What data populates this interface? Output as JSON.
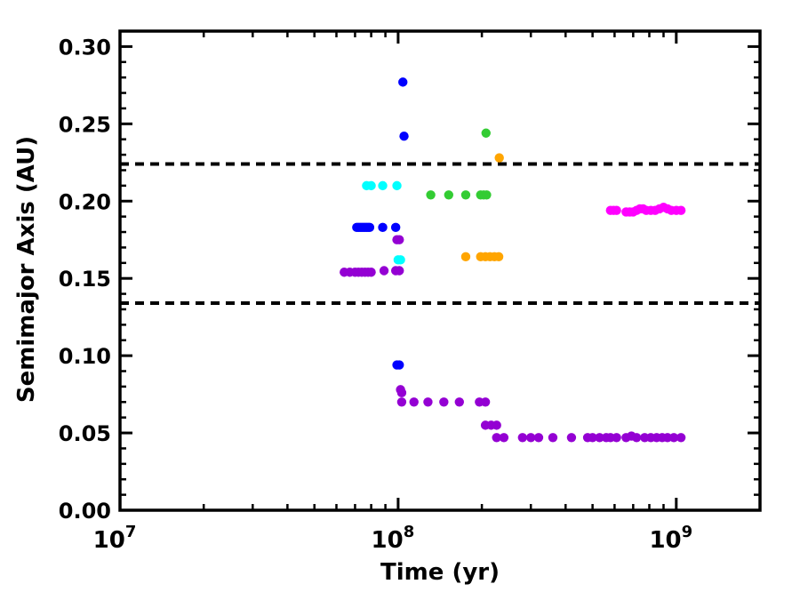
{
  "chart_data": {
    "type": "scatter",
    "title": "",
    "xlabel": "Time (yr)",
    "ylabel": "Semimajor Axis (AU)",
    "xscale": "log",
    "xlim": [
      10000000,
      2000000000
    ],
    "ylim": [
      0.0,
      0.31
    ],
    "grid": false,
    "legend": "none",
    "x_major_ticks": [
      {
        "value": 10000000,
        "base": "10",
        "exp": "7"
      },
      {
        "value": 100000000,
        "base": "10",
        "exp": "8"
      },
      {
        "value": 1000000000,
        "base": "10",
        "exp": "9"
      }
    ],
    "y_ticks": [
      0.0,
      0.05,
      0.1,
      0.15,
      0.2,
      0.25,
      0.3
    ],
    "y_tick_labels": [
      "0.00",
      "0.05",
      "0.10",
      "0.15",
      "0.20",
      "0.25",
      "0.30"
    ],
    "reference_lines": [
      {
        "y": 0.224,
        "style": "dashed",
        "color": "#000000"
      },
      {
        "y": 0.134,
        "style": "dashed",
        "color": "#000000"
      }
    ],
    "series": [
      {
        "color": "#0000ff",
        "points": [
          [
            71000000,
            0.183
          ],
          [
            72000000,
            0.183
          ],
          [
            73000000,
            0.183
          ],
          [
            74000000,
            0.183
          ],
          [
            75000000,
            0.183
          ],
          [
            76000000,
            0.183
          ],
          [
            77000000,
            0.183
          ],
          [
            78000000,
            0.183
          ],
          [
            79000000,
            0.183
          ],
          [
            88000000,
            0.183
          ],
          [
            98000000,
            0.183
          ],
          [
            104000000,
            0.277
          ],
          [
            105000000,
            0.242
          ],
          [
            99000000,
            0.094
          ],
          [
            101000000,
            0.094
          ]
        ]
      },
      {
        "color": "#00ffff",
        "points": [
          [
            77000000,
            0.21
          ],
          [
            80000000,
            0.21
          ],
          [
            88000000,
            0.21
          ],
          [
            99000000,
            0.21
          ],
          [
            100000000,
            0.162
          ],
          [
            102000000,
            0.162
          ]
        ]
      },
      {
        "color": "#33cc33",
        "points": [
          [
            131000000,
            0.204
          ],
          [
            152000000,
            0.204
          ],
          [
            175000000,
            0.204
          ],
          [
            198000000,
            0.204
          ],
          [
            203000000,
            0.204
          ],
          [
            208000000,
            0.204
          ],
          [
            207000000,
            0.244
          ]
        ]
      },
      {
        "color": "#ffa500",
        "points": [
          [
            175000000,
            0.164
          ],
          [
            198000000,
            0.164
          ],
          [
            206000000,
            0.164
          ],
          [
            214000000,
            0.164
          ],
          [
            222000000,
            0.164
          ],
          [
            230000000,
            0.164
          ],
          [
            231000000,
            0.228
          ]
        ]
      },
      {
        "color": "#ff00ff",
        "points": [
          [
            580000000,
            0.194
          ],
          [
            595000000,
            0.194
          ],
          [
            610000000,
            0.194
          ],
          [
            660000000,
            0.193
          ],
          [
            680000000,
            0.193
          ],
          [
            700000000,
            0.193
          ],
          [
            720000000,
            0.194
          ],
          [
            740000000,
            0.195
          ],
          [
            760000000,
            0.195
          ],
          [
            780000000,
            0.194
          ],
          [
            810000000,
            0.194
          ],
          [
            840000000,
            0.194
          ],
          [
            870000000,
            0.195
          ],
          [
            900000000,
            0.196
          ],
          [
            930000000,
            0.195
          ],
          [
            960000000,
            0.194
          ],
          [
            1000000000,
            0.194
          ],
          [
            1040000000,
            0.194
          ]
        ]
      },
      {
        "color": "#9400d3",
        "points": [
          [
            64000000,
            0.154
          ],
          [
            67000000,
            0.154
          ],
          [
            70000000,
            0.154
          ],
          [
            72000000,
            0.154
          ],
          [
            74000000,
            0.154
          ],
          [
            76000000,
            0.154
          ],
          [
            78000000,
            0.154
          ],
          [
            80000000,
            0.154
          ],
          [
            89000000,
            0.155
          ],
          [
            98000000,
            0.155
          ],
          [
            101000000,
            0.155
          ],
          [
            99000000,
            0.175
          ],
          [
            101000000,
            0.175
          ],
          [
            102000000,
            0.078
          ],
          [
            103000000,
            0.076
          ],
          [
            103000000,
            0.07
          ],
          [
            114000000,
            0.07
          ],
          [
            128000000,
            0.07
          ],
          [
            146000000,
            0.07
          ],
          [
            166000000,
            0.07
          ],
          [
            196000000,
            0.07
          ],
          [
            206000000,
            0.07
          ],
          [
            206000000,
            0.055
          ],
          [
            216000000,
            0.055
          ],
          [
            226000000,
            0.055
          ],
          [
            226000000,
            0.047
          ],
          [
            240000000,
            0.047
          ],
          [
            280000000,
            0.047
          ],
          [
            300000000,
            0.047
          ],
          [
            320000000,
            0.047
          ],
          [
            360000000,
            0.047
          ],
          [
            420000000,
            0.047
          ],
          [
            480000000,
            0.047
          ],
          [
            500000000,
            0.047
          ],
          [
            530000000,
            0.047
          ],
          [
            560000000,
            0.047
          ],
          [
            580000000,
            0.047
          ],
          [
            610000000,
            0.047
          ],
          [
            660000000,
            0.047
          ],
          [
            690000000,
            0.048
          ],
          [
            720000000,
            0.047
          ],
          [
            770000000,
            0.047
          ],
          [
            810000000,
            0.047
          ],
          [
            850000000,
            0.047
          ],
          [
            890000000,
            0.047
          ],
          [
            930000000,
            0.047
          ],
          [
            980000000,
            0.047
          ],
          [
            1040000000,
            0.047
          ]
        ]
      }
    ]
  }
}
